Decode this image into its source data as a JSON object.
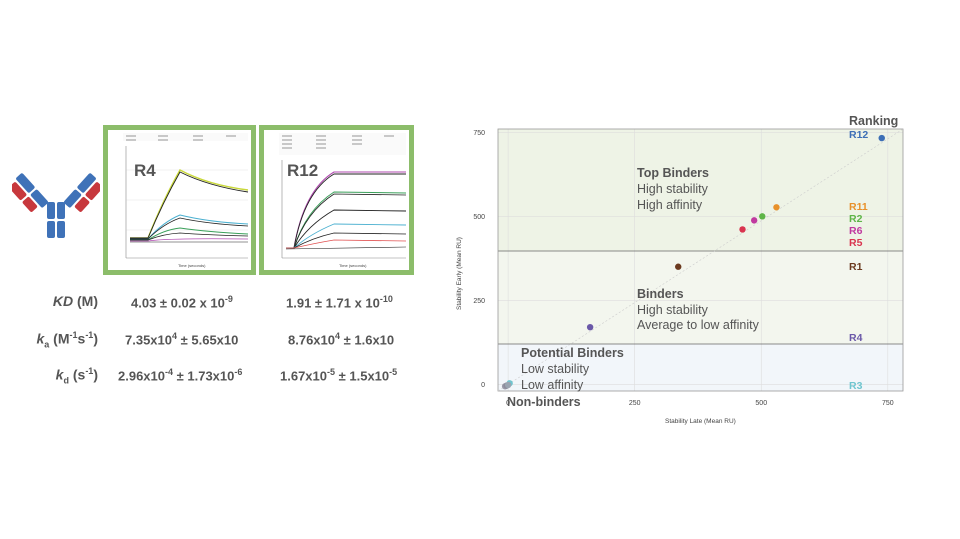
{
  "panels": [
    {
      "label": "R4"
    },
    {
      "label": "R12"
    }
  ],
  "kinetics": {
    "rows": [
      {
        "label_main": "KD",
        "label_tail": " (M)",
        "r4_base": "4.03 ± 0.02 x 10",
        "r4_exp": "-9",
        "r12_base": "1.91 ± 1.71 x 10",
        "r12_exp": "-10"
      },
      {
        "label_main": "k",
        "label_sub": "a",
        "label_tail": " (M",
        "label_sup1": "-1",
        "label_mid": "s",
        "label_sup2": "-1",
        "label_end": ")",
        "r4_a": "7.35x10",
        "r4_a_exp": "4",
        "r4_b": " ± 5.65x10",
        "r12_a": "8.76x10",
        "r12_a_exp": "4",
        "r12_b": " ± 1.6x10"
      },
      {
        "label_main": "k",
        "label_sub": "d",
        "label_tail": " (s",
        "label_sup1": "-1",
        "label_end": ")",
        "r4_a": "2.96x10",
        "r4_a_exp": "-4",
        "r4_b": " ± 1.73x10",
        "r4_b_exp": "-6",
        "r12_a": "1.67x10",
        "r12_a_exp": "-5",
        "r12_b": " ± 1.5x10",
        "r12_b_exp": "-5"
      }
    ]
  },
  "zones": {
    "top": {
      "title": "Top Binders",
      "line1": "High stability",
      "line2": "High affinity"
    },
    "binders": {
      "title": "Binders",
      "line1": "High stability",
      "line2": "Average to low affinity"
    },
    "potential": {
      "title": "Potential Binders",
      "line1": "Low stability",
      "line2": "Low affinity"
    },
    "non": {
      "title": "Non-binders"
    }
  },
  "ranking": {
    "title": "Ranking",
    "items": [
      {
        "label": "R12",
        "color": "#3d6fb6"
      },
      {
        "label": "R11",
        "color": "#e8912a"
      },
      {
        "label": "R2",
        "color": "#5fb548"
      },
      {
        "label": "R6",
        "color": "#c0399f"
      },
      {
        "label": "R5",
        "color": "#d9344f"
      },
      {
        "label": "R1",
        "color": "#6b3a1f"
      },
      {
        "label": "R4",
        "color": "#6a58a8"
      },
      {
        "label": "R3",
        "color": "#6fc5cf"
      }
    ]
  },
  "chart_data": {
    "type": "scatter",
    "xlabel": "Stability Late (Mean RU)",
    "ylabel": "Stability Early (Mean RU)",
    "xlim": [
      -20,
      780
    ],
    "ylim": [
      -20,
      760
    ],
    "xticks": [
      0,
      250,
      500,
      750
    ],
    "yticks": [
      0,
      250,
      500,
      750
    ],
    "grid": true,
    "points": [
      {
        "name": "R12",
        "x": 738,
        "y": 733,
        "color": "#3d6fb6"
      },
      {
        "name": "R11",
        "x": 530,
        "y": 527,
        "color": "#e8912a"
      },
      {
        "name": "R2",
        "x": 502,
        "y": 500,
        "color": "#5fb548"
      },
      {
        "name": "R6",
        "x": 486,
        "y": 488,
        "color": "#c0399f"
      },
      {
        "name": "R5",
        "x": 463,
        "y": 461,
        "color": "#d9344f"
      },
      {
        "name": "R1",
        "x": 336,
        "y": 350,
        "color": "#6b3a1f"
      },
      {
        "name": "R4",
        "x": 162,
        "y": 170,
        "color": "#6a58a8"
      },
      {
        "name": "R3",
        "x": 3,
        "y": 3,
        "color": "#6fc5cf"
      },
      {
        "name": "",
        "x": -6,
        "y": -6,
        "color": "#9a9aa8"
      },
      {
        "name": "",
        "x": -3,
        "y": -4,
        "color": "#8c8c9c"
      },
      {
        "name": "",
        "x": 0,
        "y": -2,
        "color": "#9aa4b0"
      }
    ]
  }
}
